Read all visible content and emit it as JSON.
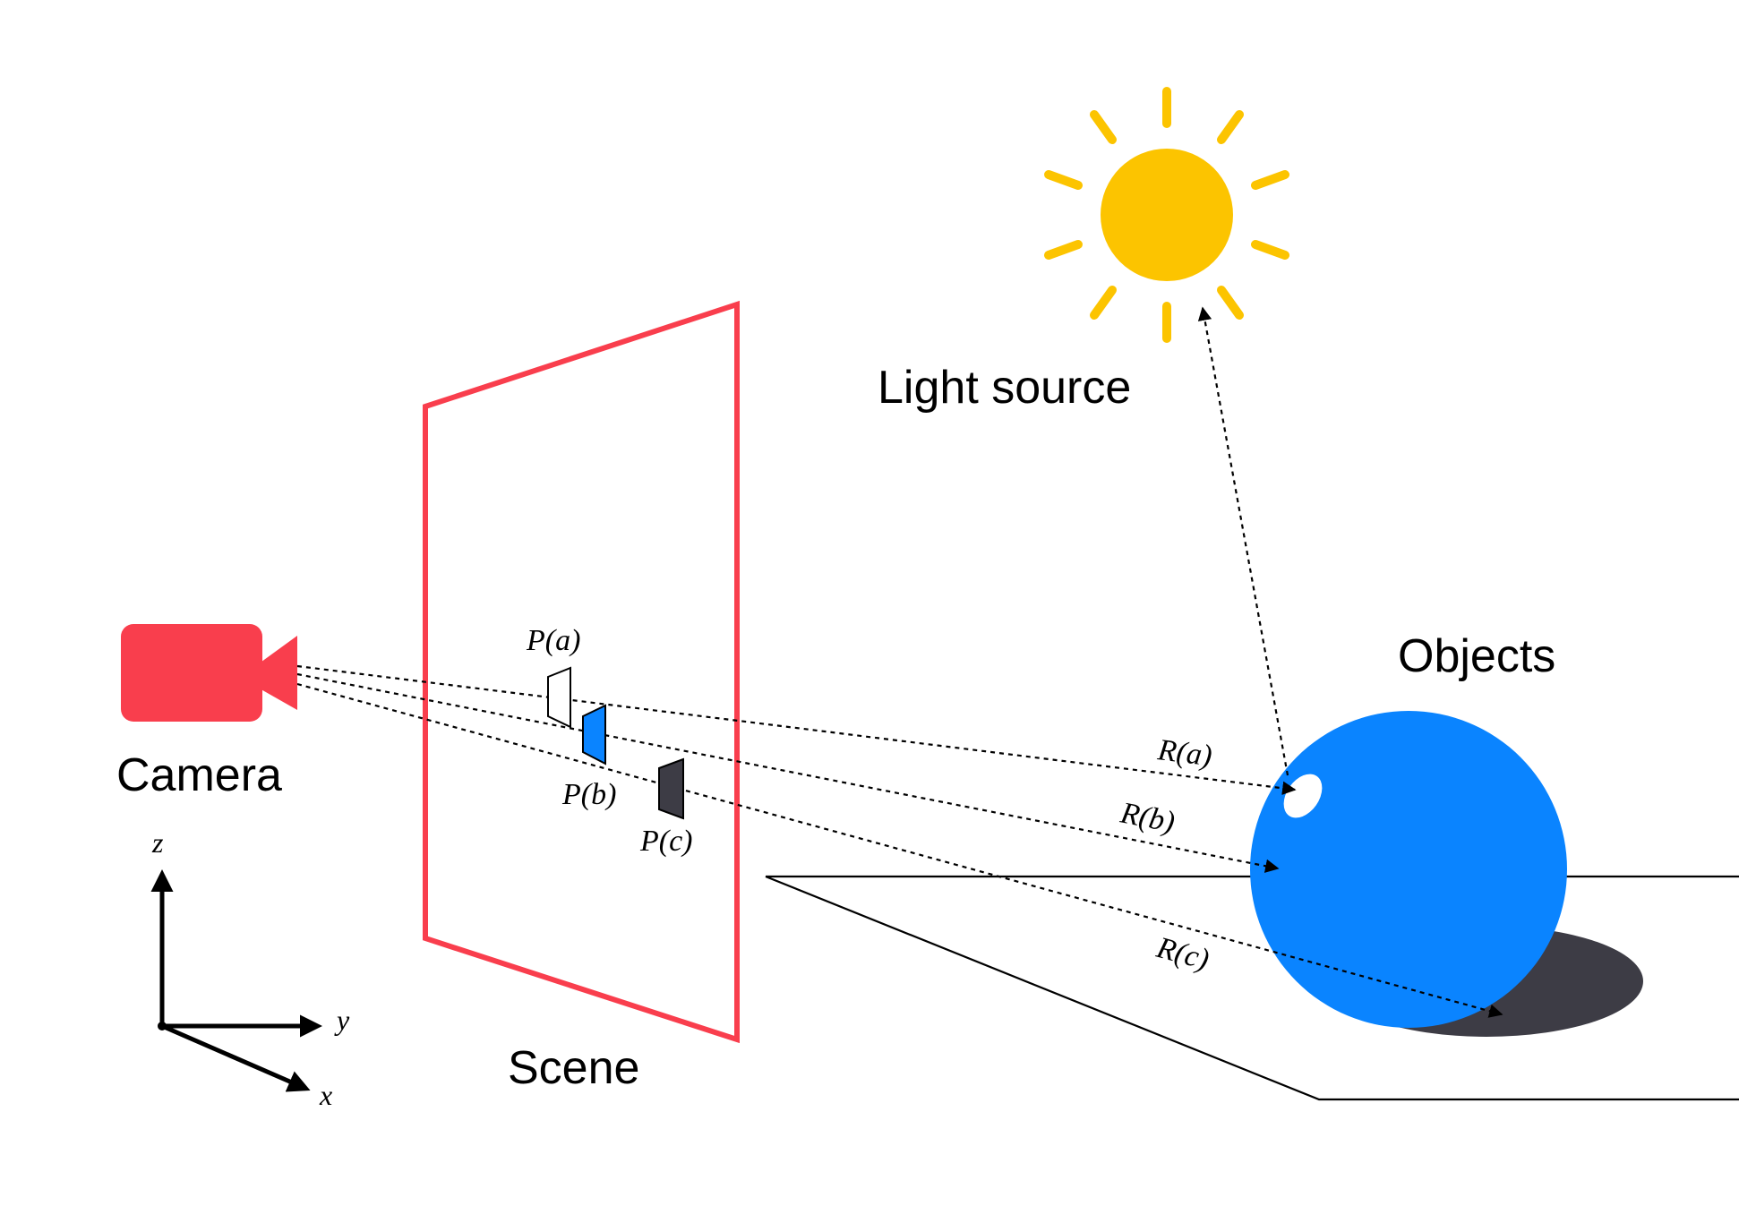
{
  "labels": {
    "camera": "Camera",
    "scene": "Scene",
    "light_source": "Light source",
    "objects": "Objects"
  },
  "axes": {
    "z": "z",
    "y": "y",
    "x": "x"
  },
  "pixels": {
    "a": "P(a)",
    "b": "P(b)",
    "c": "P(c)"
  },
  "rays": {
    "a": "R(a)",
    "b": "R(b)",
    "c": "R(c)"
  },
  "colors": {
    "camera": "#f93e4d",
    "scene_frame": "#f93e4d",
    "sun": "#fcc400",
    "sphere": "#0a84ff",
    "shadow": "#3d3c45",
    "pixel_a": "#ffffff",
    "pixel_b": "#0a84ff",
    "pixel_c": "#3d3c45"
  },
  "icons": {
    "camera": "video-camera-icon",
    "sun": "sun-icon"
  }
}
